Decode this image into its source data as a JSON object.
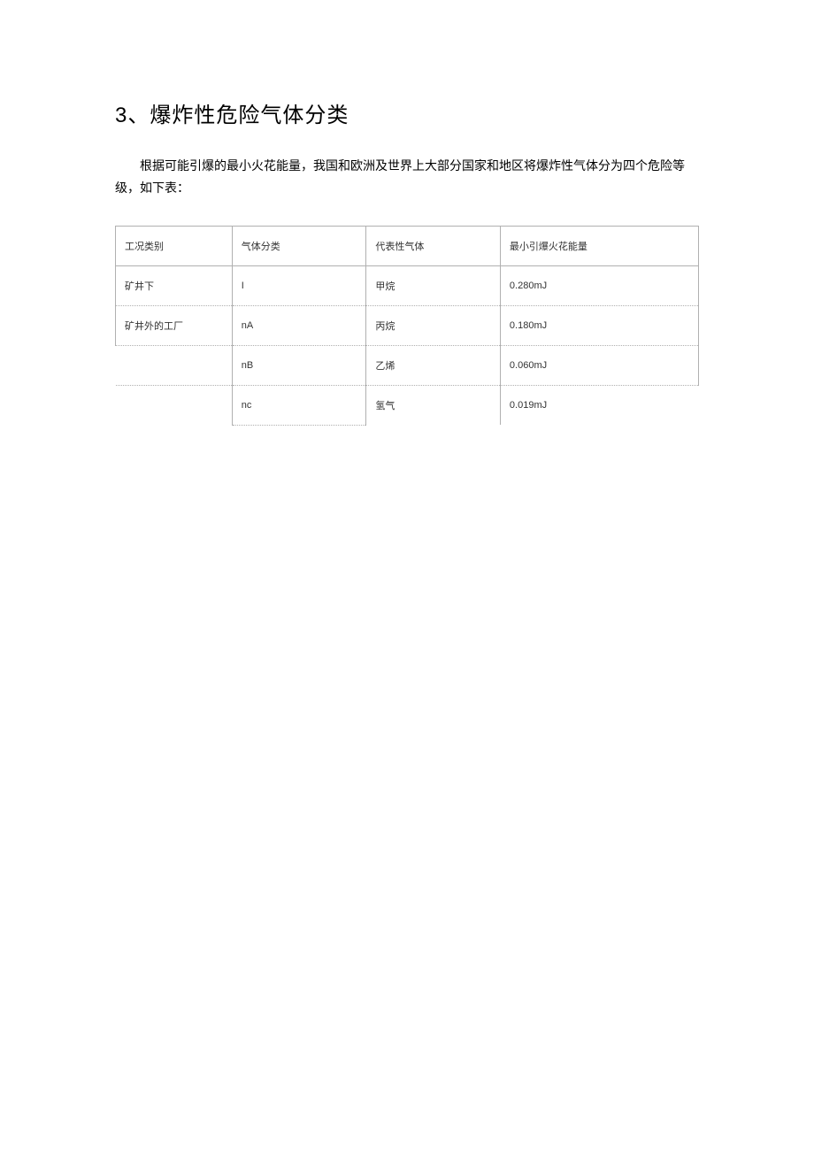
{
  "heading": "3、爆炸性危险气体分类",
  "intro": "根据可能引爆的最小火花能量，我国和欧洲及世界上大部分国家和地区将爆炸性气体分为四个危险等级，如下表：",
  "table": {
    "columns": [
      "工况类别",
      "气体分类",
      "代表性气体",
      "最小引爆火花能量"
    ],
    "column_widths_pct": [
      20,
      23,
      23,
      34
    ],
    "header_fontsize": 11,
    "cell_fontsize": 11,
    "border_color": "#b0b0b0",
    "text_color": "#333333",
    "rows": [
      {
        "cells": [
          "矿井下",
          "I",
          "甲烷",
          "0.280mJ"
        ]
      },
      {
        "cells": [
          "矿井外的工厂",
          "nA",
          "丙烷",
          "0.180mJ"
        ]
      },
      {
        "cells": [
          "",
          "nB",
          "乙烯",
          "0.060mJ"
        ]
      },
      {
        "cells": [
          "",
          "nc",
          "氢气",
          "0.019mJ"
        ]
      }
    ]
  },
  "page": {
    "background_color": "#ffffff",
    "heading_fontsize": 24,
    "body_fontsize": 14
  }
}
